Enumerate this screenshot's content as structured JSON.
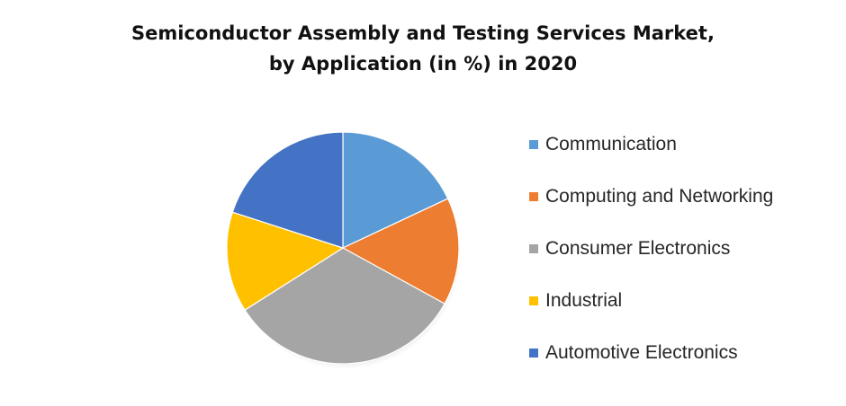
{
  "chart_data": {
    "type": "pie",
    "title": "Semiconductor Assembly and Testing Services Market, by Application (in %) in 2020",
    "title_lines": [
      "Semiconductor Assembly and Testing Services Market,",
      "by Application (in %) in 2020"
    ],
    "categories": [
      "Communication",
      "Computing and Networking",
      "Consumer Electronics",
      "Industrial",
      "Automotive Electronics"
    ],
    "values": [
      18,
      15,
      33,
      14,
      20
    ],
    "colors": [
      "#5B9BD5",
      "#ED7D31",
      "#A5A5A5",
      "#FFC000",
      "#4472C4"
    ],
    "legend_position": "right",
    "start_angle_deg": 0,
    "direction": "clockwise"
  }
}
